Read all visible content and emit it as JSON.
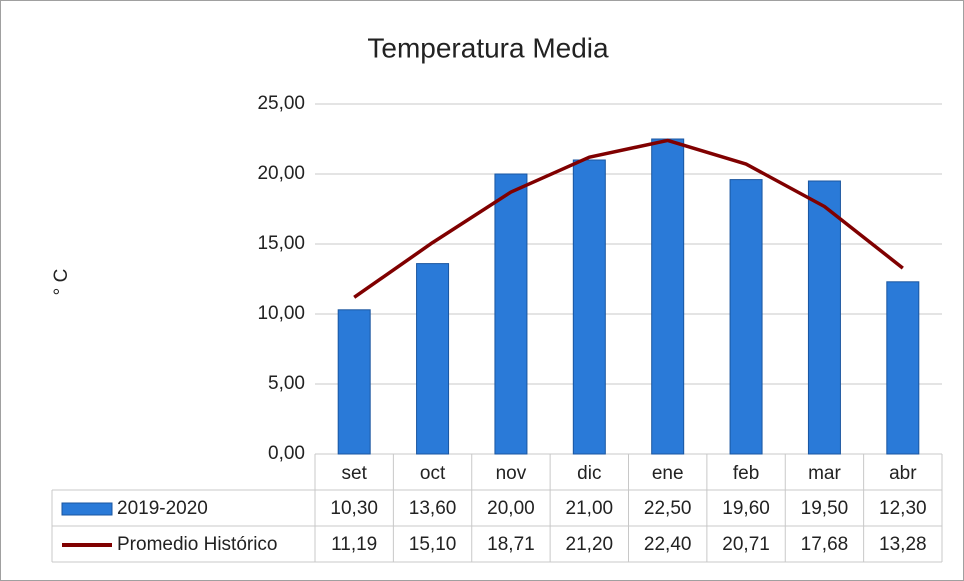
{
  "chart_data": {
    "type": "bar",
    "title": "Temperatura Media",
    "y_axis_label": "° C",
    "categories": [
      "set",
      "oct",
      "nov",
      "dic",
      "ene",
      "feb",
      "mar",
      "abr"
    ],
    "series": [
      {
        "name": "2019-2020",
        "type": "bar",
        "color": "#2a7ad8",
        "values": [
          10.3,
          13.6,
          20.0,
          21.0,
          22.5,
          19.6,
          19.5,
          12.3
        ],
        "value_labels": [
          "10,30",
          "13,60",
          "20,00",
          "21,00",
          "22,50",
          "19,60",
          "19,50",
          "12,30"
        ]
      },
      {
        "name": "Promedio Histórico",
        "type": "line",
        "color": "#800000",
        "values": [
          11.19,
          15.1,
          18.71,
          21.2,
          22.4,
          20.71,
          17.68,
          13.28
        ],
        "value_labels": [
          "11,19",
          "15,10",
          "18,71",
          "21,20",
          "22,40",
          "20,71",
          "17,68",
          "13,28"
        ]
      }
    ],
    "ylim": [
      0,
      25
    ],
    "yticks": [
      {
        "value": 0,
        "label": "0,00"
      },
      {
        "value": 5,
        "label": "5,00"
      },
      {
        "value": 10,
        "label": "10,00"
      },
      {
        "value": 15,
        "label": "15,00"
      },
      {
        "value": 20,
        "label": "20,00"
      },
      {
        "value": 25,
        "label": "25,00"
      }
    ],
    "grid": true,
    "data_table": true
  }
}
